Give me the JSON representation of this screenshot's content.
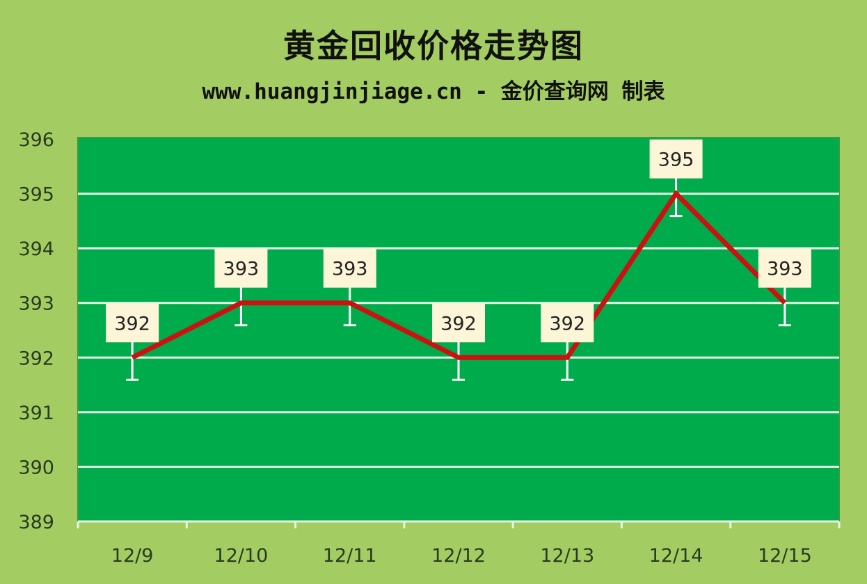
{
  "chart_data": {
    "type": "line",
    "title": "黄金回收价格走势图",
    "subtitle": "www.huangjinjiage.cn - 金价查询网 制表",
    "categories": [
      "12/9",
      "12/10",
      "12/11",
      "12/12",
      "12/13",
      "12/14",
      "12/15"
    ],
    "values": [
      392,
      393,
      393,
      392,
      392,
      395,
      393
    ],
    "ylim": [
      389,
      396
    ],
    "yticks": [
      389,
      390,
      391,
      392,
      393,
      394,
      395,
      396
    ],
    "grid": true,
    "data_labels": true,
    "colors": {
      "background": "#a3cd62",
      "plot_area": "#00ab4b",
      "line": "#cc1111",
      "gridline": "#e6f7e6",
      "label_box": "#fdf5d8"
    }
  }
}
